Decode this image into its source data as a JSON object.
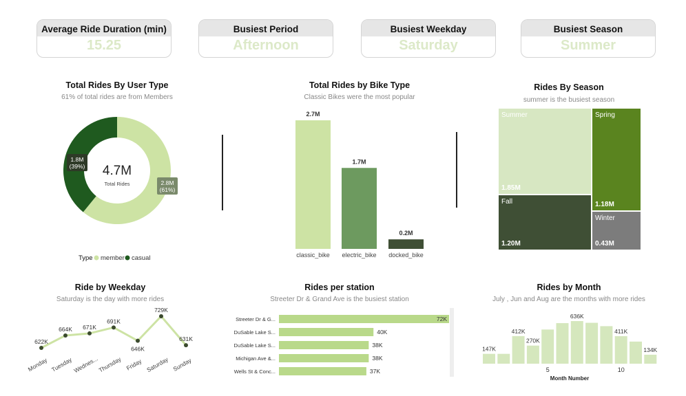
{
  "kpis": [
    {
      "label": "Average Ride Duration (min)",
      "value": "15.25"
    },
    {
      "label": "Busiest Period",
      "value": "Afternoon"
    },
    {
      "label": "Busiest Weekday",
      "value": "Saturday"
    },
    {
      "label": "Busiest Season",
      "value": "Summer"
    }
  ],
  "colors": {
    "light": "#cde3a4",
    "mid": "#6d9a5f",
    "dark": "#3f4f35",
    "darkgreen": "#1f5a1f",
    "spring": "#5a841f",
    "winter": "#7c7c7c",
    "marker": "#3b4a2e",
    "station": "#b9d98a",
    "month": "#d5e7bd"
  },
  "chart_data": [
    {
      "type": "pie",
      "title": "Total Rides By User Type",
      "subtitle": "61% of total rides are from Members",
      "center_value": "4.7M",
      "center_label": "Total Rides",
      "legend_title": "Type",
      "legend_position": "bottom",
      "slices": [
        {
          "name": "member",
          "value": 2.8,
          "label": "2.8M",
          "pct": "(61%)"
        },
        {
          "name": "casual",
          "value": 1.8,
          "label": "1.8M",
          "pct": "(39%)"
        }
      ]
    },
    {
      "type": "bar",
      "title": "Total Rides by Bike Type",
      "subtitle": "Classic Bikes were the most popular",
      "categories": [
        "classic_bike",
        "electric_bike",
        "docked_bike"
      ],
      "values": [
        2.7,
        1.7,
        0.2
      ],
      "labels": [
        "2.7M",
        "1.7M",
        "0.2M"
      ]
    },
    {
      "type": "treemap",
      "title": "Rides By Season",
      "subtitle": "summer is the busiest season",
      "items": [
        {
          "name": "Summer",
          "value": 1.85,
          "label": "1.85M"
        },
        {
          "name": "Fall",
          "value": 1.2,
          "label": "1.20M"
        },
        {
          "name": "Spring",
          "value": 1.18,
          "label": "1.18M"
        },
        {
          "name": "Winter",
          "value": 0.43,
          "label": "0.43M"
        }
      ]
    },
    {
      "type": "line",
      "title": "Ride by Weekday",
      "subtitle": "Saturday is the day with more rides",
      "categories": [
        "Monday",
        "Tuesday",
        "Wednes...",
        "Thursday",
        "Friday",
        "Saturday",
        "Sunday"
      ],
      "values": [
        622,
        664,
        671,
        691,
        646,
        729,
        631
      ],
      "labels": [
        "622K",
        "664K",
        "671K",
        "691K",
        "646K",
        "729K",
        "631K"
      ]
    },
    {
      "type": "bar",
      "orientation": "horizontal",
      "title": "Rides per station",
      "subtitle": "Streeter Dr & Grand Ave is the busiest station",
      "categories": [
        "Streeter Dr & G...",
        "DuSable Lake S...",
        "DuSable Lake S...",
        "Michigan Ave &...",
        "Wells St & Conc..."
      ],
      "values": [
        72,
        40,
        38,
        38,
        37
      ],
      "labels": [
        "72K",
        "40K",
        "38K",
        "38K",
        "37K"
      ]
    },
    {
      "type": "bar",
      "title": "Rides by Month",
      "subtitle": "July , Jun and Aug are the months with more rides",
      "xlabel": "Month Number",
      "x": [
        1,
        2,
        3,
        4,
        5,
        6,
        7,
        8,
        9,
        10,
        11,
        12
      ],
      "values": [
        147,
        147,
        412,
        270,
        510,
        605,
        636,
        610,
        560,
        411,
        330,
        134
      ],
      "data_labels": {
        "1": "147K",
        "3": "412K",
        "4": "270K",
        "7": "636K",
        "10": "411K",
        "12": "134K"
      },
      "x_ticks": [
        "5",
        "10"
      ]
    }
  ]
}
